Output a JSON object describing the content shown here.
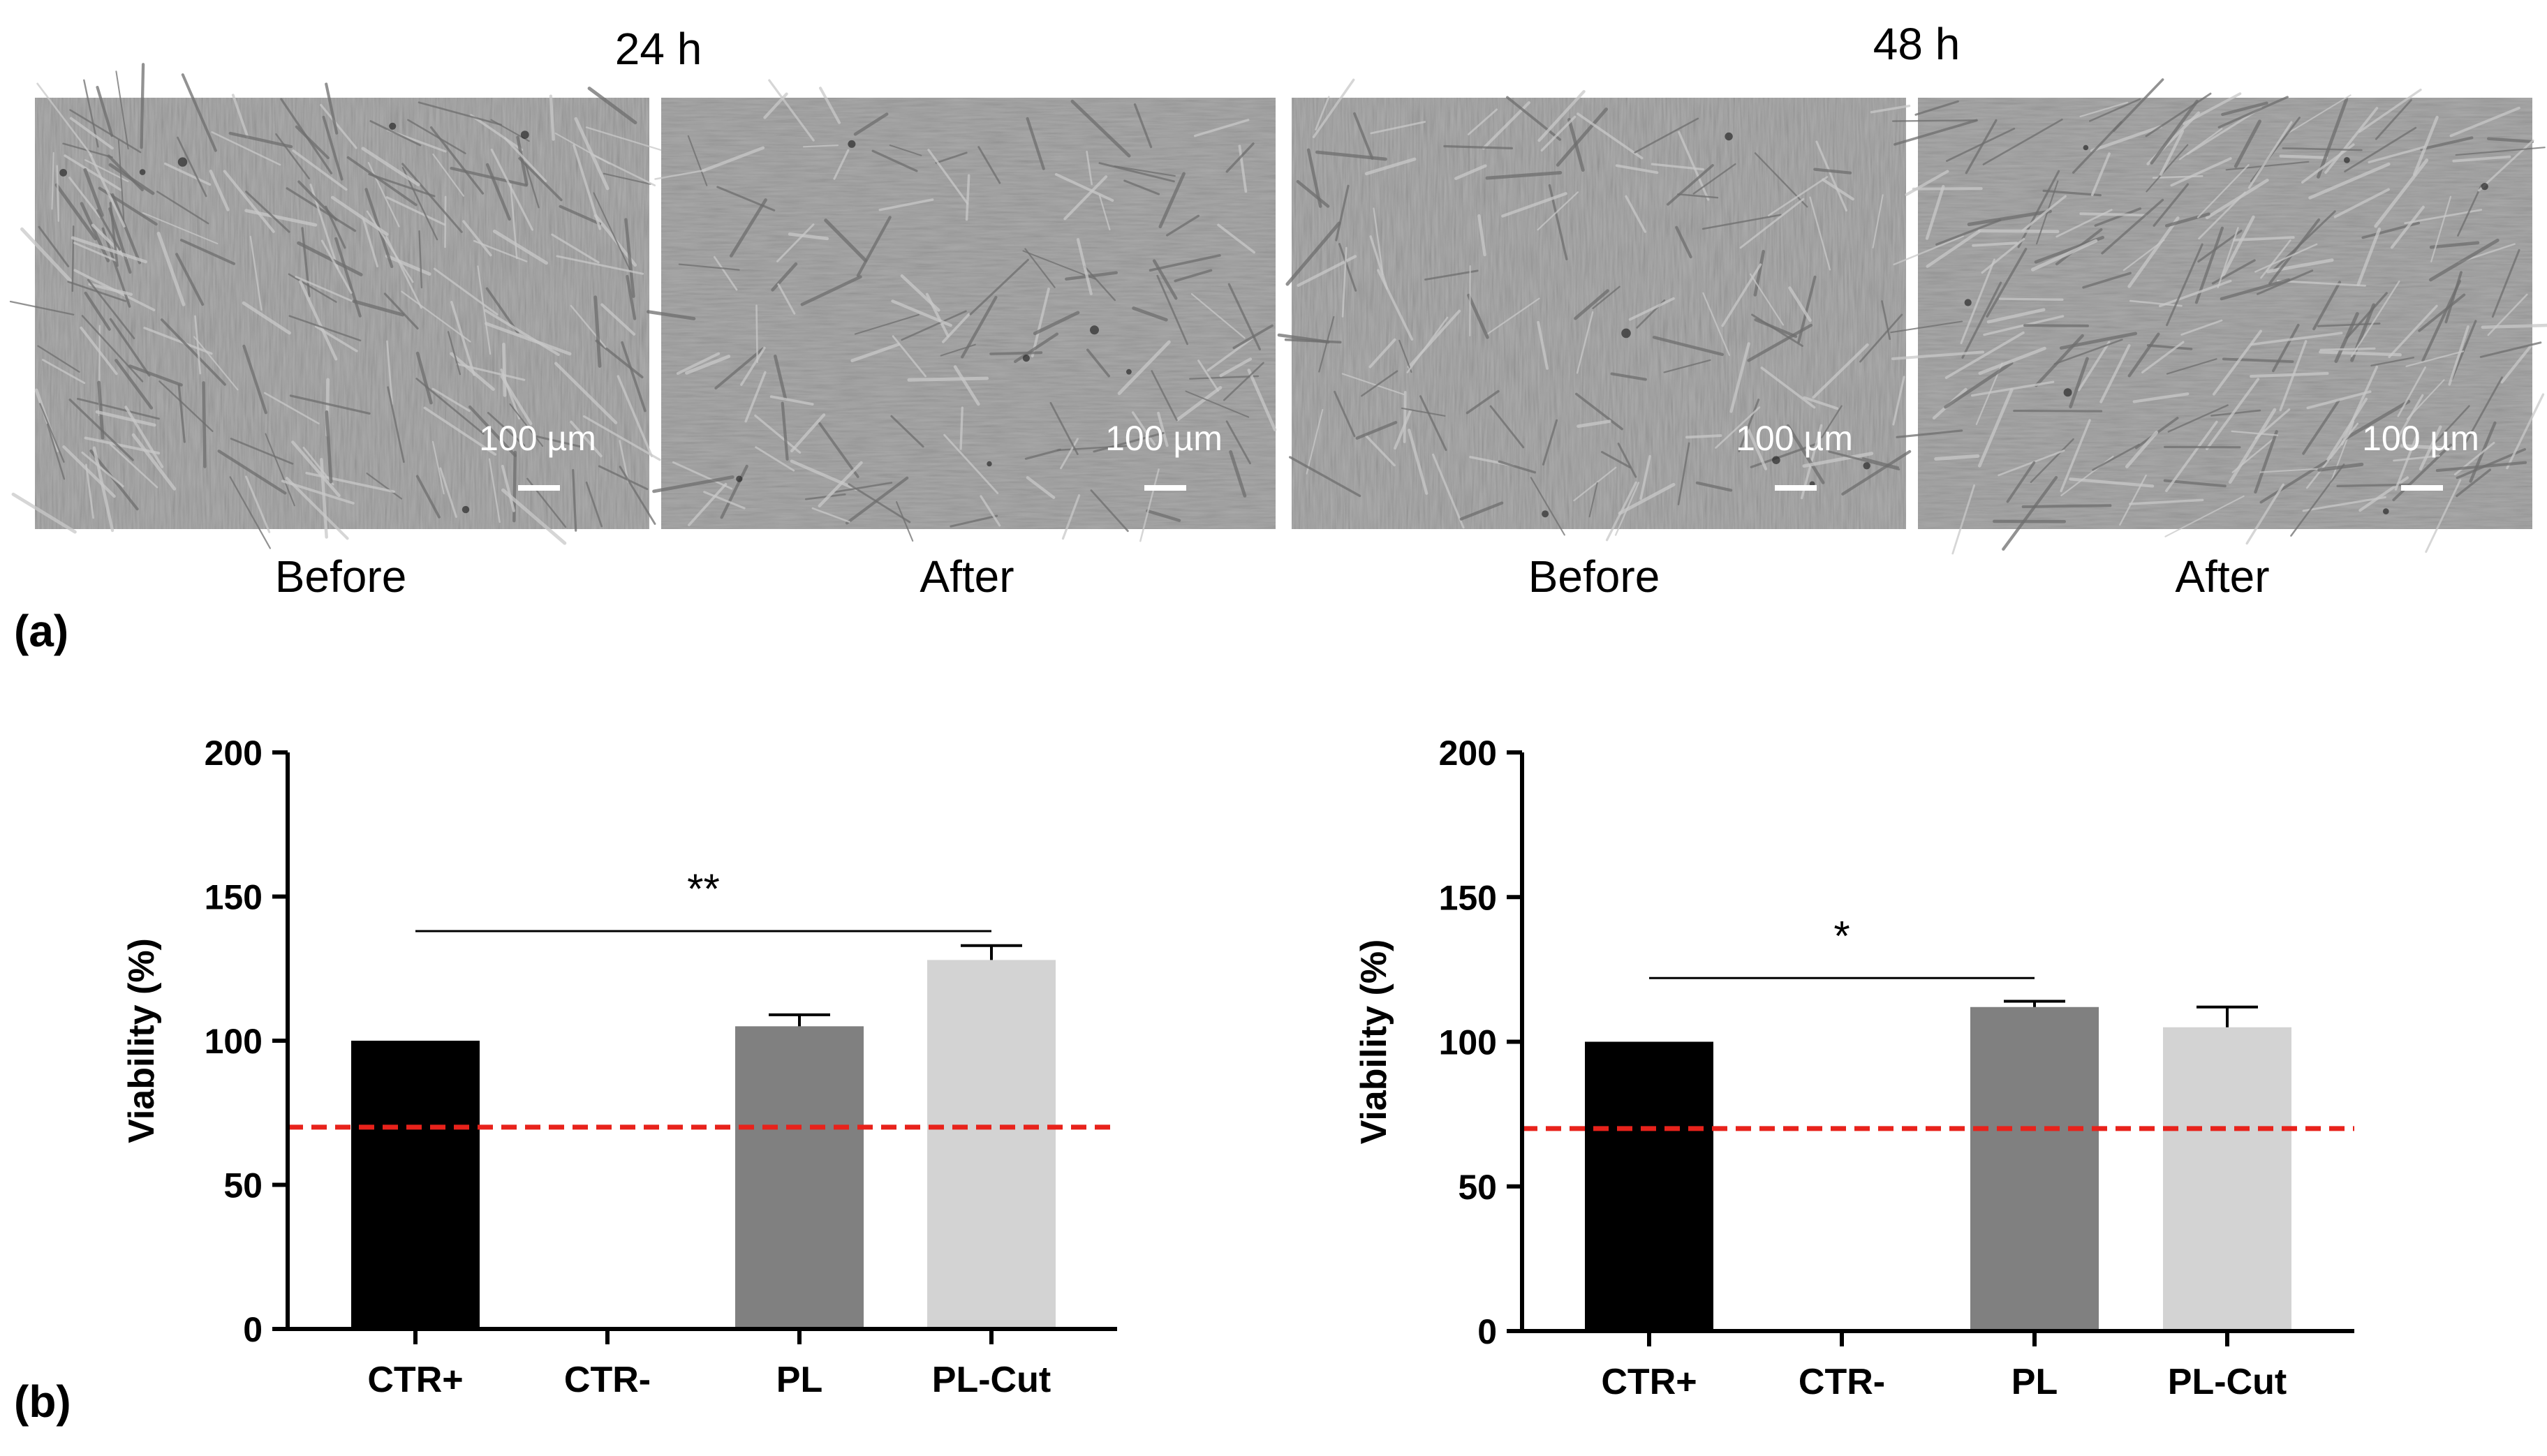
{
  "panel_a": {
    "label": "(a)",
    "groups": [
      {
        "time": "24 h",
        "images": [
          {
            "caption": "Before",
            "scale_bar": "100 µm",
            "scene": "dense-cells"
          },
          {
            "caption": "After",
            "scale_bar": "100 µm",
            "scene": "sparse-cells"
          }
        ]
      },
      {
        "time": "48 h",
        "images": [
          {
            "caption": "Before",
            "scale_bar": "100 µm",
            "scene": "sparse-cells"
          },
          {
            "caption": "After",
            "scale_bar": "100 µm",
            "scene": "dense-cells"
          }
        ]
      }
    ],
    "image_tone": "#9a9a9a"
  },
  "panel_b": {
    "label": "(b)"
  },
  "chart_data": [
    {
      "type": "bar",
      "title": "",
      "xlabel": "",
      "ylabel": "Viability (%)",
      "categories": [
        "CTR+",
        "CTR-",
        "PL",
        "PL-Cut"
      ],
      "values": [
        100,
        0,
        105,
        128
      ],
      "errors": [
        0,
        0,
        4,
        5
      ],
      "colors": [
        "#000000",
        "#ffffff",
        "#808080",
        "#d3d3d3"
      ],
      "ylim": [
        0,
        200
      ],
      "yticks": [
        0,
        50,
        100,
        150,
        200
      ],
      "threshold": {
        "value": 70,
        "color": "#e8221b",
        "style": "dashed"
      },
      "significance": {
        "from": "CTR+",
        "to": "PL-Cut",
        "y": 138,
        "label": "**"
      },
      "grid": false
    },
    {
      "type": "bar",
      "title": "",
      "xlabel": "",
      "ylabel": "Viability (%)",
      "categories": [
        "CTR+",
        "CTR-",
        "PL",
        "PL-Cut"
      ],
      "values": [
        100,
        0,
        112,
        105
      ],
      "errors": [
        0,
        0,
        2,
        7
      ],
      "colors": [
        "#000000",
        "#ffffff",
        "#808080",
        "#d3d3d3"
      ],
      "ylim": [
        0,
        200
      ],
      "yticks": [
        0,
        50,
        100,
        150,
        200
      ],
      "threshold": {
        "value": 70,
        "color": "#e8221b",
        "style": "dashed"
      },
      "significance": {
        "from": "CTR+",
        "to": "PL",
        "y": 122,
        "label": "*"
      },
      "grid": false
    }
  ]
}
